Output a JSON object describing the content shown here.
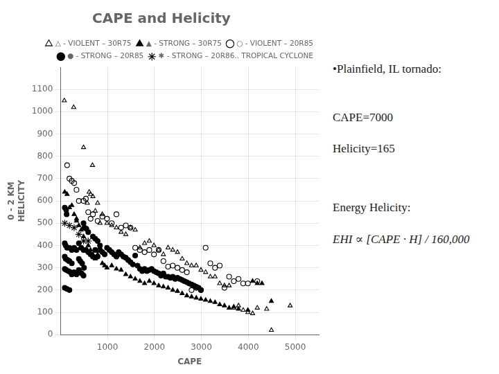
{
  "chart_data": {
    "type": "scatter",
    "title": "CAPE and Helicity",
    "xlabel": "CAPE",
    "ylabel": [
      "0 - 2 KM",
      "HELICITY"
    ],
    "xlim": [
      0,
      5500
    ],
    "ylim": [
      0,
      1200
    ],
    "xticks": [
      1000,
      2000,
      3000,
      4000,
      5000
    ],
    "yticks": [
      0,
      100,
      200,
      300,
      400,
      500,
      600,
      700,
      800,
      900,
      1000,
      1100
    ],
    "grid": true,
    "legend": "upper right",
    "annotations": [
      "•Plainfield, IL tornado:",
      "CAPE=7000",
      "Helicity=165",
      "Energy Helicity:",
      "EHI ∝ [CAPE · H] / 160,000"
    ],
    "series": [
      {
        "name": "△ - VIOLENT – 30R75",
        "color": "#000000",
        "marker": "open_triangle",
        "values": [
          [
            80,
            1050
          ],
          [
            280,
            1020
          ],
          [
            490,
            840
          ],
          [
            680,
            760
          ],
          [
            640,
            630
          ],
          [
            610,
            640
          ],
          [
            570,
            590
          ],
          [
            690,
            620
          ],
          [
            790,
            590
          ],
          [
            740,
            555
          ],
          [
            890,
            540
          ],
          [
            840,
            500
          ],
          [
            990,
            500
          ],
          [
            1090,
            490
          ],
          [
            1190,
            480
          ],
          [
            1290,
            460
          ],
          [
            1390,
            450
          ],
          [
            1490,
            480
          ],
          [
            1590,
            470
          ],
          [
            1690,
            390
          ],
          [
            1790,
            410
          ],
          [
            1890,
            420
          ],
          [
            1990,
            400
          ],
          [
            2090,
            380
          ],
          [
            2190,
            360
          ],
          [
            2290,
            390
          ],
          [
            2390,
            380
          ],
          [
            2490,
            370
          ],
          [
            2590,
            340
          ],
          [
            2690,
            320
          ],
          [
            2790,
            310
          ],
          [
            2890,
            310
          ],
          [
            2990,
            290
          ],
          [
            3090,
            280
          ],
          [
            3190,
            260
          ],
          [
            3290,
            260
          ],
          [
            3390,
            230
          ],
          [
            3490,
            220
          ],
          [
            3590,
            220
          ],
          [
            3690,
            120
          ],
          [
            3790,
            130
          ],
          [
            3890,
            110
          ],
          [
            3990,
            100
          ],
          [
            4090,
            95
          ],
          [
            4190,
            120
          ],
          [
            4390,
            115
          ],
          [
            4490,
            20
          ],
          [
            4890,
            130
          ]
        ]
      },
      {
        "name": "▲ - STRONG – 30R75",
        "color": "#000000",
        "marker": "triangle",
        "values": [
          [
            90,
            640
          ],
          [
            140,
            630
          ],
          [
            190,
            570
          ],
          [
            240,
            580
          ],
          [
            290,
            540
          ],
          [
            340,
            510
          ],
          [
            390,
            490
          ],
          [
            340,
            520
          ],
          [
            440,
            470
          ],
          [
            490,
            440
          ],
          [
            590,
            400
          ],
          [
            640,
            380
          ],
          [
            690,
            360
          ],
          [
            740,
            340
          ],
          [
            790,
            360
          ],
          [
            890,
            320
          ],
          [
            940,
            310
          ],
          [
            990,
            300
          ],
          [
            1090,
            310
          ],
          [
            1190,
            295
          ],
          [
            1290,
            290
          ],
          [
            1390,
            270
          ],
          [
            1490,
            260
          ],
          [
            1590,
            250
          ],
          [
            1690,
            240
          ],
          [
            1790,
            230
          ],
          [
            1890,
            240
          ],
          [
            1990,
            230
          ],
          [
            2090,
            220
          ],
          [
            2190,
            215
          ],
          [
            2290,
            210
          ],
          [
            2390,
            200
          ],
          [
            2490,
            195
          ],
          [
            2590,
            185
          ],
          [
            2690,
            175
          ],
          [
            2790,
            170
          ],
          [
            2890,
            165
          ],
          [
            2990,
            160
          ],
          [
            3090,
            155
          ],
          [
            3190,
            150
          ],
          [
            3290,
            145
          ],
          [
            3390,
            135
          ],
          [
            3490,
            130
          ],
          [
            3590,
            120
          ],
          [
            3690,
            125
          ],
          [
            3790,
            115
          ],
          [
            3990,
            110
          ],
          [
            4090,
            240
          ],
          [
            4190,
            230
          ],
          [
            4290,
            230
          ],
          [
            4490,
            150
          ]
        ]
      },
      {
        "name": "○ - VIOLENT – 20R85",
        "color": "#000000",
        "marker": "open_circle",
        "values": [
          [
            140,
            760
          ],
          [
            190,
            700
          ],
          [
            240,
            690
          ],
          [
            290,
            680
          ],
          [
            340,
            650
          ],
          [
            390,
            600
          ],
          [
            490,
            600
          ],
          [
            540,
            610
          ],
          [
            590,
            550
          ],
          [
            690,
            540
          ],
          [
            640,
            520
          ],
          [
            790,
            510
          ],
          [
            890,
            530
          ],
          [
            990,
            520
          ],
          [
            1090,
            500
          ],
          [
            1190,
            540
          ],
          [
            1290,
            480
          ],
          [
            1390,
            490
          ],
          [
            1490,
            480
          ],
          [
            1590,
            390
          ],
          [
            1690,
            380
          ],
          [
            1790,
            370
          ],
          [
            1890,
            380
          ],
          [
            1990,
            360
          ],
          [
            2090,
            380
          ],
          [
            2190,
            330
          ],
          [
            2290,
            305
          ],
          [
            2390,
            310
          ],
          [
            2490,
            300
          ],
          [
            2590,
            290
          ],
          [
            2690,
            280
          ],
          [
            2790,
            200
          ],
          [
            2890,
            210
          ],
          [
            2990,
            200
          ],
          [
            3090,
            390
          ],
          [
            3190,
            320
          ],
          [
            3290,
            300
          ],
          [
            3390,
            310
          ],
          [
            3490,
            210
          ],
          [
            3590,
            260
          ],
          [
            3690,
            240
          ],
          [
            3790,
            250
          ],
          [
            3890,
            230
          ],
          [
            3990,
            230
          ],
          [
            4190,
            240
          ]
        ]
      },
      {
        "name": "● - STRONG – 20R85",
        "color": "#000000",
        "marker": "circle",
        "values": [
          [
            90,
            410
          ],
          [
            110,
            400
          ],
          [
            140,
            390
          ],
          [
            190,
            390
          ],
          [
            240,
            380
          ],
          [
            290,
            390
          ],
          [
            340,
            380
          ],
          [
            390,
            410
          ],
          [
            440,
            390
          ],
          [
            490,
            380
          ],
          [
            540,
            380
          ],
          [
            590,
            370
          ],
          [
            640,
            360
          ],
          [
            690,
            350
          ],
          [
            740,
            380
          ],
          [
            790,
            350
          ],
          [
            840,
            380
          ],
          [
            890,
            370
          ],
          [
            940,
            360
          ],
          [
            990,
            390
          ],
          [
            1040,
            380
          ],
          [
            1090,
            370
          ],
          [
            1140,
            360
          ],
          [
            1190,
            350
          ],
          [
            1240,
            370
          ],
          [
            1290,
            360
          ],
          [
            1340,
            350
          ],
          [
            1390,
            345
          ],
          [
            1440,
            335
          ],
          [
            1490,
            325
          ],
          [
            1540,
            315
          ],
          [
            1590,
            355
          ],
          [
            1640,
            310
          ],
          [
            1690,
            295
          ],
          [
            1740,
            285
          ],
          [
            1790,
            295
          ],
          [
            1840,
            285
          ],
          [
            1890,
            290
          ],
          [
            1940,
            295
          ],
          [
            1990,
            285
          ],
          [
            2040,
            280
          ],
          [
            2090,
            275
          ],
          [
            2140,
            265
          ],
          [
            2190,
            275
          ],
          [
            2240,
            260
          ],
          [
            2290,
            260
          ],
          [
            2340,
            255
          ],
          [
            2390,
            260
          ],
          [
            2440,
            250
          ],
          [
            2490,
            255
          ],
          [
            2540,
            250
          ],
          [
            2590,
            245
          ],
          [
            2640,
            240
          ],
          [
            2690,
            235
          ],
          [
            2740,
            230
          ],
          [
            2790,
            225
          ],
          [
            2840,
            220
          ],
          [
            2890,
            215
          ],
          [
            2940,
            210
          ],
          [
            2990,
            200
          ],
          [
            90,
            210
          ],
          [
            140,
            205
          ],
          [
            190,
            200
          ],
          [
            190,
            330
          ],
          [
            240,
            320
          ],
          [
            290,
            280
          ],
          [
            340,
            270
          ],
          [
            240,
            270
          ],
          [
            90,
            295
          ],
          [
            120,
            290
          ],
          [
            170,
            285
          ],
          [
            210,
            280
          ],
          [
            90,
            350
          ],
          [
            110,
            340
          ],
          [
            150,
            335
          ],
          [
            180,
            330
          ],
          [
            390,
            290
          ],
          [
            410,
            280
          ],
          [
            450,
            275
          ],
          [
            490,
            265
          ],
          [
            390,
            340
          ],
          [
            420,
            330
          ],
          [
            460,
            320
          ],
          [
            500,
            300
          ],
          [
            490,
            500
          ],
          [
            510,
            480
          ],
          [
            550,
            475
          ],
          [
            590,
            460
          ],
          [
            690,
            440
          ],
          [
            740,
            430
          ],
          [
            790,
            420
          ],
          [
            840,
            400
          ],
          [
            90,
            570
          ],
          [
            120,
            560
          ],
          [
            130,
            540
          ]
        ]
      },
      {
        "name": "✱ - STRONG – 20R86.. TROPICAL CYCLONE",
        "color": "#000000",
        "marker": "star",
        "values": [
          [
            90,
            500
          ],
          [
            190,
            490
          ],
          [
            290,
            480
          ],
          [
            390,
            450
          ],
          [
            490,
            420
          ],
          [
            590,
            420
          ]
        ]
      }
    ]
  }
}
